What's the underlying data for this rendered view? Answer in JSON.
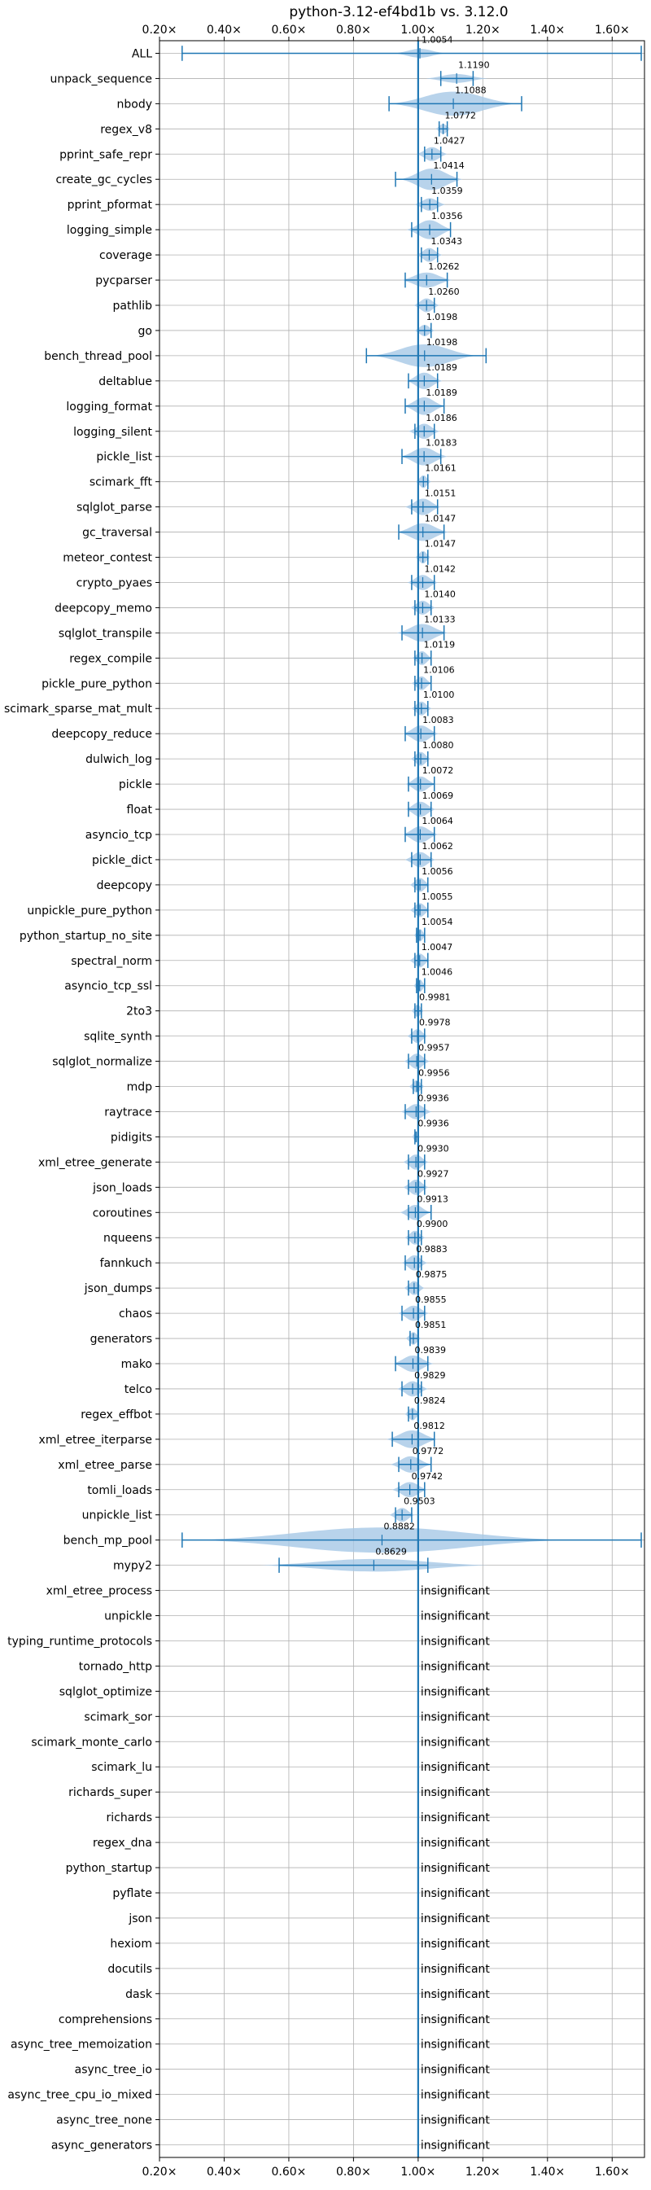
{
  "chart_data": {
    "type": "violin",
    "title": "python-3.12-ef4bd1b vs. 3.12.0",
    "xlim": [
      0.2,
      1.7
    ],
    "x_ticks": [
      0.2,
      0.4,
      0.6,
      0.8,
      1.0,
      1.2,
      1.4,
      1.6
    ],
    "x_tick_labels": [
      "0.20×",
      "0.40×",
      "0.60×",
      "0.80×",
      "1.00×",
      "1.20×",
      "1.40×",
      "1.60×"
    ],
    "reference_line": 1.0,
    "grid": true,
    "accent_color": "#1f77b4",
    "violin_color": "#a6c8e6",
    "insignificant_label": "insignificant",
    "benchmarks": [
      {
        "name": "ALL",
        "label": "1.0054",
        "value": 1.0054,
        "min": 0.27,
        "max": 1.69,
        "w": 0.05,
        "h": 0.35
      },
      {
        "name": "unpack_sequence",
        "label": "1.1190",
        "value": 1.119,
        "min": 1.07,
        "max": 1.17,
        "w": 0.06,
        "h": 0.35
      },
      {
        "name": "nbody",
        "label": "1.1088",
        "value": 1.1088,
        "min": 0.91,
        "max": 1.32,
        "w": 0.12,
        "h": 0.95
      },
      {
        "name": "regex_v8",
        "label": "1.0772",
        "value": 1.0772,
        "min": 1.065,
        "max": 1.09,
        "w": 0.015,
        "h": 0.4
      },
      {
        "name": "pprint_safe_repr",
        "label": "1.0427",
        "value": 1.0427,
        "min": 1.02,
        "max": 1.07,
        "w": 0.03,
        "h": 0.55
      },
      {
        "name": "create_gc_cycles",
        "label": "1.0414",
        "value": 1.0414,
        "min": 0.93,
        "max": 1.12,
        "w": 0.06,
        "h": 0.85
      },
      {
        "name": "pprint_pformat",
        "label": "1.0359",
        "value": 1.0359,
        "min": 1.01,
        "max": 1.06,
        "w": 0.03,
        "h": 0.5
      },
      {
        "name": "logging_simple",
        "label": "1.0356",
        "value": 1.0356,
        "min": 0.98,
        "max": 1.1,
        "w": 0.045,
        "h": 0.75
      },
      {
        "name": "coverage",
        "label": "1.0343",
        "value": 1.0343,
        "min": 1.01,
        "max": 1.06,
        "w": 0.025,
        "h": 0.55
      },
      {
        "name": "pycparser",
        "label": "1.0262",
        "value": 1.0262,
        "min": 0.96,
        "max": 1.09,
        "w": 0.05,
        "h": 0.6
      },
      {
        "name": "pathlib",
        "label": "1.0260",
        "value": 1.026,
        "min": 1.0,
        "max": 1.05,
        "w": 0.025,
        "h": 0.55
      },
      {
        "name": "go",
        "label": "1.0198",
        "value": 1.0198,
        "min": 1.0,
        "max": 1.04,
        "w": 0.02,
        "h": 0.45
      },
      {
        "name": "bench_thread_pool",
        "label": "1.0198",
        "value": 1.0198,
        "min": 0.84,
        "max": 1.21,
        "w": 0.1,
        "h": 0.9
      },
      {
        "name": "deltablue",
        "label": "1.0189",
        "value": 1.0189,
        "min": 0.97,
        "max": 1.06,
        "w": 0.035,
        "h": 0.65
      },
      {
        "name": "logging_format",
        "label": "1.0189",
        "value": 1.0189,
        "min": 0.96,
        "max": 1.08,
        "w": 0.04,
        "h": 0.7
      },
      {
        "name": "logging_silent",
        "label": "1.0186",
        "value": 1.0186,
        "min": 0.99,
        "max": 1.05,
        "w": 0.03,
        "h": 0.6
      },
      {
        "name": "pickle_list",
        "label": "1.0183",
        "value": 1.0183,
        "min": 0.95,
        "max": 1.07,
        "w": 0.045,
        "h": 0.7
      },
      {
        "name": "scimark_fft",
        "label": "1.0161",
        "value": 1.0161,
        "min": 1.0,
        "max": 1.03,
        "w": 0.015,
        "h": 0.5
      },
      {
        "name": "sqlglot_parse",
        "label": "1.0151",
        "value": 1.0151,
        "min": 0.98,
        "max": 1.06,
        "w": 0.035,
        "h": 0.65
      },
      {
        "name": "gc_traversal",
        "label": "1.0147",
        "value": 1.0147,
        "min": 0.94,
        "max": 1.08,
        "w": 0.05,
        "h": 0.7
      },
      {
        "name": "meteor_contest",
        "label": "1.0147",
        "value": 1.0147,
        "min": 1.0,
        "max": 1.03,
        "w": 0.015,
        "h": 0.5
      },
      {
        "name": "crypto_pyaes",
        "label": "1.0142",
        "value": 1.0142,
        "min": 0.98,
        "max": 1.05,
        "w": 0.03,
        "h": 0.6
      },
      {
        "name": "deepcopy_memo",
        "label": "1.0140",
        "value": 1.014,
        "min": 0.99,
        "max": 1.04,
        "w": 0.025,
        "h": 0.55
      },
      {
        "name": "sqlglot_transpile",
        "label": "1.0133",
        "value": 1.0133,
        "min": 0.95,
        "max": 1.08,
        "w": 0.05,
        "h": 0.7
      },
      {
        "name": "regex_compile",
        "label": "1.0119",
        "value": 1.0119,
        "min": 0.99,
        "max": 1.04,
        "w": 0.02,
        "h": 0.55
      },
      {
        "name": "pickle_pure_python",
        "label": "1.0106",
        "value": 1.0106,
        "min": 0.99,
        "max": 1.04,
        "w": 0.02,
        "h": 0.55
      },
      {
        "name": "scimark_sparse_mat_mult",
        "label": "1.0100",
        "value": 1.01,
        "min": 0.99,
        "max": 1.03,
        "w": 0.02,
        "h": 0.55
      },
      {
        "name": "deepcopy_reduce",
        "label": "1.0083",
        "value": 1.0083,
        "min": 0.96,
        "max": 1.05,
        "w": 0.035,
        "h": 0.65
      },
      {
        "name": "dulwich_log",
        "label": "1.0080",
        "value": 1.008,
        "min": 0.99,
        "max": 1.03,
        "w": 0.02,
        "h": 0.55
      },
      {
        "name": "pickle",
        "label": "1.0072",
        "value": 1.0072,
        "min": 0.97,
        "max": 1.05,
        "w": 0.03,
        "h": 0.6
      },
      {
        "name": "float",
        "label": "1.0069",
        "value": 1.0069,
        "min": 0.97,
        "max": 1.04,
        "w": 0.03,
        "h": 0.6
      },
      {
        "name": "asyncio_tcp",
        "label": "1.0064",
        "value": 1.0064,
        "min": 0.96,
        "max": 1.05,
        "w": 0.035,
        "h": 0.65
      },
      {
        "name": "pickle_dict",
        "label": "1.0062",
        "value": 1.0062,
        "min": 0.98,
        "max": 1.04,
        "w": 0.03,
        "h": 0.6
      },
      {
        "name": "deepcopy",
        "label": "1.0056",
        "value": 1.0056,
        "min": 0.99,
        "max": 1.03,
        "w": 0.02,
        "h": 0.55
      },
      {
        "name": "unpickle_pure_python",
        "label": "1.0055",
        "value": 1.0055,
        "min": 0.99,
        "max": 1.03,
        "w": 0.02,
        "h": 0.55
      },
      {
        "name": "python_startup_no_site",
        "label": "1.0054",
        "value": 1.0054,
        "min": 0.995,
        "max": 1.02,
        "w": 0.012,
        "h": 0.5
      },
      {
        "name": "spectral_norm",
        "label": "1.0047",
        "value": 1.0047,
        "min": 0.99,
        "max": 1.03,
        "w": 0.02,
        "h": 0.55
      },
      {
        "name": "asyncio_tcp_ssl",
        "label": "1.0046",
        "value": 1.0046,
        "min": 0.995,
        "max": 1.02,
        "w": 0.012,
        "h": 0.5
      },
      {
        "name": "2to3",
        "label": "0.9981",
        "value": 0.9981,
        "min": 0.99,
        "max": 1.01,
        "w": 0.012,
        "h": 0.5
      },
      {
        "name": "sqlite_synth",
        "label": "0.9978",
        "value": 0.9978,
        "min": 0.98,
        "max": 1.02,
        "w": 0.02,
        "h": 0.55
      },
      {
        "name": "sqlglot_normalize",
        "label": "0.9957",
        "value": 0.9957,
        "min": 0.97,
        "max": 1.02,
        "w": 0.025,
        "h": 0.6
      },
      {
        "name": "mdp",
        "label": "0.9956",
        "value": 0.9956,
        "min": 0.985,
        "max": 1.01,
        "w": 0.015,
        "h": 0.5
      },
      {
        "name": "raytrace",
        "label": "0.9936",
        "value": 0.9936,
        "min": 0.96,
        "max": 1.02,
        "w": 0.03,
        "h": 0.6
      },
      {
        "name": "pidigits",
        "label": "0.9936",
        "value": 0.9936,
        "min": 0.99,
        "max": 1.0,
        "w": 0.008,
        "h": 0.45
      },
      {
        "name": "xml_etree_generate",
        "label": "0.9930",
        "value": 0.993,
        "min": 0.97,
        "max": 1.02,
        "w": 0.025,
        "h": 0.6
      },
      {
        "name": "json_loads",
        "label": "0.9927",
        "value": 0.9927,
        "min": 0.97,
        "max": 1.02,
        "w": 0.025,
        "h": 0.6
      },
      {
        "name": "coroutines",
        "label": "0.9913",
        "value": 0.9913,
        "min": 0.97,
        "max": 1.04,
        "w": 0.03,
        "h": 0.6
      },
      {
        "name": "nqueens",
        "label": "0.9900",
        "value": 0.99,
        "min": 0.97,
        "max": 1.01,
        "w": 0.02,
        "h": 0.55
      },
      {
        "name": "fannkuch",
        "label": "0.9883",
        "value": 0.9883,
        "min": 0.96,
        "max": 1.01,
        "w": 0.025,
        "h": 0.6
      },
      {
        "name": "json_dumps",
        "label": "0.9875",
        "value": 0.9875,
        "min": 0.97,
        "max": 1.0,
        "w": 0.02,
        "h": 0.55
      },
      {
        "name": "chaos",
        "label": "0.9855",
        "value": 0.9855,
        "min": 0.95,
        "max": 1.02,
        "w": 0.03,
        "h": 0.6
      },
      {
        "name": "generators",
        "label": "0.9851",
        "value": 0.9851,
        "min": 0.975,
        "max": 1.0,
        "w": 0.015,
        "h": 0.5
      },
      {
        "name": "mako",
        "label": "0.9839",
        "value": 0.9839,
        "min": 0.93,
        "max": 1.03,
        "w": 0.04,
        "h": 0.65
      },
      {
        "name": "telco",
        "label": "0.9829",
        "value": 0.9829,
        "min": 0.95,
        "max": 1.01,
        "w": 0.03,
        "h": 0.6
      },
      {
        "name": "regex_effbot",
        "label": "0.9824",
        "value": 0.9824,
        "min": 0.97,
        "max": 1.0,
        "w": 0.015,
        "h": 0.5
      },
      {
        "name": "xml_etree_iterparse",
        "label": "0.9812",
        "value": 0.9812,
        "min": 0.92,
        "max": 1.05,
        "w": 0.05,
        "h": 0.7
      },
      {
        "name": "xml_etree_parse",
        "label": "0.9772",
        "value": 0.9772,
        "min": 0.94,
        "max": 1.04,
        "w": 0.04,
        "h": 0.65
      },
      {
        "name": "tomli_loads",
        "label": "0.9742",
        "value": 0.9742,
        "min": 0.94,
        "max": 1.02,
        "w": 0.035,
        "h": 0.6
      },
      {
        "name": "unpickle_list",
        "label": "0.9503",
        "value": 0.9503,
        "min": 0.93,
        "max": 0.98,
        "w": 0.025,
        "h": 0.55
      },
      {
        "name": "bench_mp_pool",
        "label": "0.8882",
        "value": 0.8882,
        "min": 0.27,
        "max": 1.69,
        "w": 0.35,
        "h": 1.0
      },
      {
        "name": "mypy2",
        "label": "0.8629",
        "value": 0.8629,
        "min": 0.57,
        "max": 1.03,
        "w": 0.22,
        "h": 0.5
      },
      {
        "name": "xml_etree_process",
        "insignificant": true
      },
      {
        "name": "unpickle",
        "insignificant": true
      },
      {
        "name": "typing_runtime_protocols",
        "insignificant": true
      },
      {
        "name": "tornado_http",
        "insignificant": true
      },
      {
        "name": "sqlglot_optimize",
        "insignificant": true
      },
      {
        "name": "scimark_sor",
        "insignificant": true
      },
      {
        "name": "scimark_monte_carlo",
        "insignificant": true
      },
      {
        "name": "scimark_lu",
        "insignificant": true
      },
      {
        "name": "richards_super",
        "insignificant": true
      },
      {
        "name": "richards",
        "insignificant": true
      },
      {
        "name": "regex_dna",
        "insignificant": true
      },
      {
        "name": "python_startup",
        "insignificant": true
      },
      {
        "name": "pyflate",
        "insignificant": true
      },
      {
        "name": "json",
        "insignificant": true
      },
      {
        "name": "hexiom",
        "insignificant": true
      },
      {
        "name": "docutils",
        "insignificant": true
      },
      {
        "name": "dask",
        "insignificant": true
      },
      {
        "name": "comprehensions",
        "insignificant": true
      },
      {
        "name": "async_tree_memoization",
        "insignificant": true
      },
      {
        "name": "async_tree_io",
        "insignificant": true
      },
      {
        "name": "async_tree_cpu_io_mixed",
        "insignificant": true
      },
      {
        "name": "async_tree_none",
        "insignificant": true
      },
      {
        "name": "async_generators",
        "insignificant": true
      }
    ]
  }
}
